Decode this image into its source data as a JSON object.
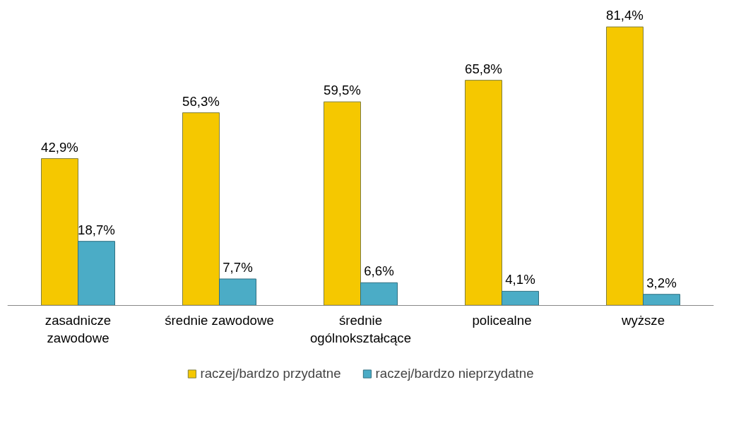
{
  "chart_data": {
    "type": "bar",
    "categories": [
      "zasadnicze zawodowe",
      "średnie zawodowe",
      "średnie ogólnokształcące",
      "policealne",
      "wyższe"
    ],
    "series": [
      {
        "name": "raczej/bardzo przydatne",
        "color": "#f5c800",
        "values": [
          42.9,
          56.3,
          59.5,
          65.8,
          81.4
        ],
        "value_labels": [
          "42,9%",
          "56,3%",
          "59,5%",
          "65,8%",
          "81,4%"
        ]
      },
      {
        "name": "raczej/bardzo nieprzydatne",
        "color": "#4bacc6",
        "values": [
          18.7,
          7.7,
          6.6,
          4.1,
          3.2
        ],
        "value_labels": [
          "18,7%",
          "7,7%",
          "6,6%",
          "4,1%",
          "3,2%"
        ]
      }
    ],
    "legend": "bottom",
    "grid": false
  }
}
